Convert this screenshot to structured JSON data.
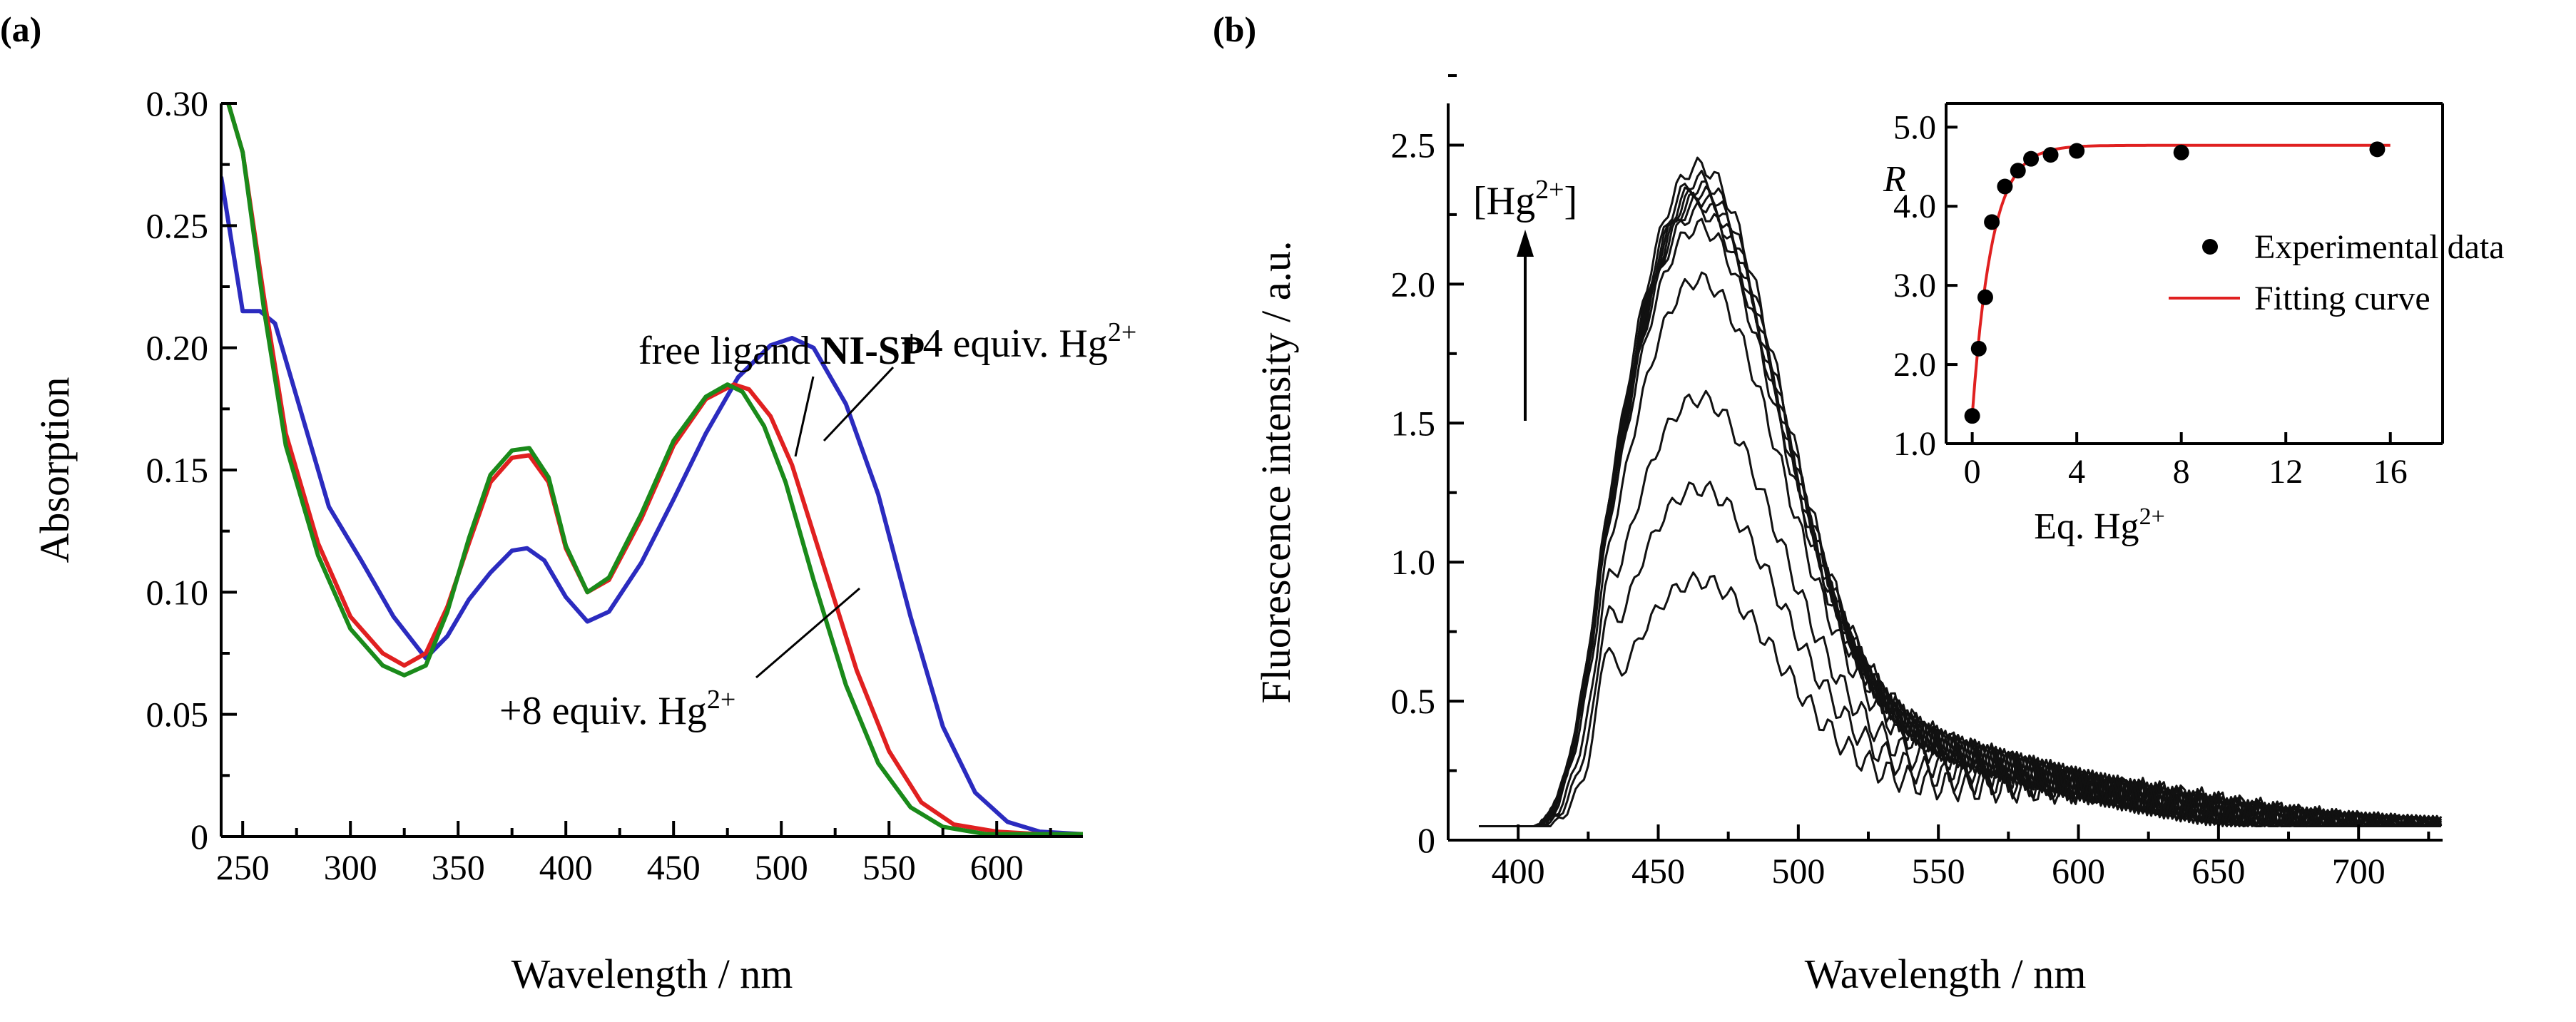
{
  "chart_data": [
    {
      "panel_label": "(a)",
      "type": "line",
      "xlabel": "Wavelength / nm",
      "ylabel": "Absorption",
      "xlim": [
        240,
        640
      ],
      "ylim": [
        0,
        0.3
      ],
      "xticks": [
        "250",
        "300",
        "350",
        "400",
        "450",
        "500",
        "550",
        "600"
      ],
      "yticks": [
        "0",
        "0.05",
        "0.10",
        "0.15",
        "0.20",
        "0.25",
        "0.30"
      ],
      "annotations": {
        "free": {
          "text": "free ligand ",
          "bold": "NI-SP"
        },
        "four": {
          "text": "+4 equiv. Hg",
          "sup": "2+"
        },
        "eight": {
          "text": "+8 equiv. Hg",
          "sup": "2+"
        }
      },
      "series": [
        {
          "color": "#2b2bbf",
          "x": [
            240,
            250,
            258,
            265,
            275,
            290,
            305,
            320,
            335,
            345,
            355,
            365,
            375,
            382,
            390,
            400,
            410,
            420,
            435,
            450,
            465,
            480,
            495,
            505,
            515,
            530,
            545,
            560,
            575,
            590,
            605,
            620,
            640
          ],
          "y": [
            0.27,
            0.215,
            0.215,
            0.21,
            0.18,
            0.135,
            0.113,
            0.09,
            0.073,
            0.082,
            0.097,
            0.108,
            0.117,
            0.118,
            0.113,
            0.098,
            0.088,
            0.092,
            0.112,
            0.138,
            0.165,
            0.188,
            0.201,
            0.204,
            0.2,
            0.177,
            0.14,
            0.09,
            0.045,
            0.018,
            0.006,
            0.002,
            0.001
          ]
        },
        {
          "color": "#e02020",
          "x": [
            240,
            250,
            260,
            270,
            285,
            300,
            315,
            325,
            335,
            345,
            355,
            365,
            375,
            383,
            392,
            400,
            410,
            420,
            435,
            450,
            465,
            478,
            485,
            495,
            505,
            520,
            535,
            550,
            565,
            580,
            600,
            620,
            640
          ],
          "y": [
            0.31,
            0.28,
            0.22,
            0.165,
            0.12,
            0.09,
            0.075,
            0.07,
            0.075,
            0.094,
            0.12,
            0.145,
            0.155,
            0.156,
            0.145,
            0.118,
            0.1,
            0.105,
            0.13,
            0.16,
            0.179,
            0.185,
            0.183,
            0.172,
            0.152,
            0.11,
            0.068,
            0.035,
            0.014,
            0.005,
            0.002,
            0.001,
            0.001
          ]
        },
        {
          "color": "#1a8a1a",
          "x": [
            240,
            250,
            260,
            270,
            285,
            300,
            315,
            325,
            335,
            345,
            355,
            365,
            375,
            383,
            392,
            400,
            410,
            420,
            435,
            450,
            465,
            475,
            482,
            492,
            502,
            515,
            530,
            545,
            560,
            575,
            595,
            620,
            640
          ],
          "y": [
            0.31,
            0.28,
            0.215,
            0.16,
            0.115,
            0.085,
            0.07,
            0.066,
            0.07,
            0.092,
            0.122,
            0.148,
            0.158,
            0.159,
            0.147,
            0.119,
            0.1,
            0.106,
            0.132,
            0.162,
            0.18,
            0.185,
            0.182,
            0.168,
            0.145,
            0.105,
            0.062,
            0.03,
            0.012,
            0.004,
            0.001,
            0.001,
            0.001
          ]
        }
      ]
    },
    {
      "panel_label": "(b)",
      "type": "line",
      "xlabel": "Wavelength / nm",
      "ylabel": "Fluorescence intensity / a.u.",
      "xlim": [
        375,
        730
      ],
      "ylim": [
        0,
        2.65
      ],
      "xticks": [
        "400",
        "450",
        "500",
        "550",
        "600",
        "650",
        "700"
      ],
      "yticks": [
        "0",
        "0.5",
        "1.0",
        "1.5",
        "2.0",
        "2.5"
      ],
      "annotation": {
        "text": "[Hg",
        "sup": "2+",
        "close": "]"
      },
      "peak_heights": [
        0.93,
        1.28,
        1.62,
        2.07,
        2.27,
        2.33,
        2.36,
        2.38,
        2.4,
        2.42,
        2.45,
        2.5
      ],
      "inset": {
        "type": "scatter",
        "xlabel": "Eq. Hg",
        "xlabel_sup": "2+",
        "ylabel": "R",
        "xlim": [
          -1,
          18
        ],
        "ylim": [
          1.0,
          5.3
        ],
        "xticks": [
          "0",
          "4",
          "8",
          "12",
          "16"
        ],
        "yticks": [
          "1.0",
          "2.0",
          "3.0",
          "4.0",
          "5.0"
        ],
        "legend": [
          "Experimental data",
          "Fitting curve"
        ],
        "points": {
          "x": [
            0,
            0.25,
            0.5,
            0.75,
            1.25,
            1.75,
            2.25,
            3.0,
            4.0,
            8.0,
            15.5
          ],
          "y": [
            1.35,
            2.2,
            2.85,
            3.8,
            4.25,
            4.45,
            4.6,
            4.65,
            4.7,
            4.68,
            4.72
          ]
        },
        "fit_color": "#e02020"
      }
    }
  ]
}
